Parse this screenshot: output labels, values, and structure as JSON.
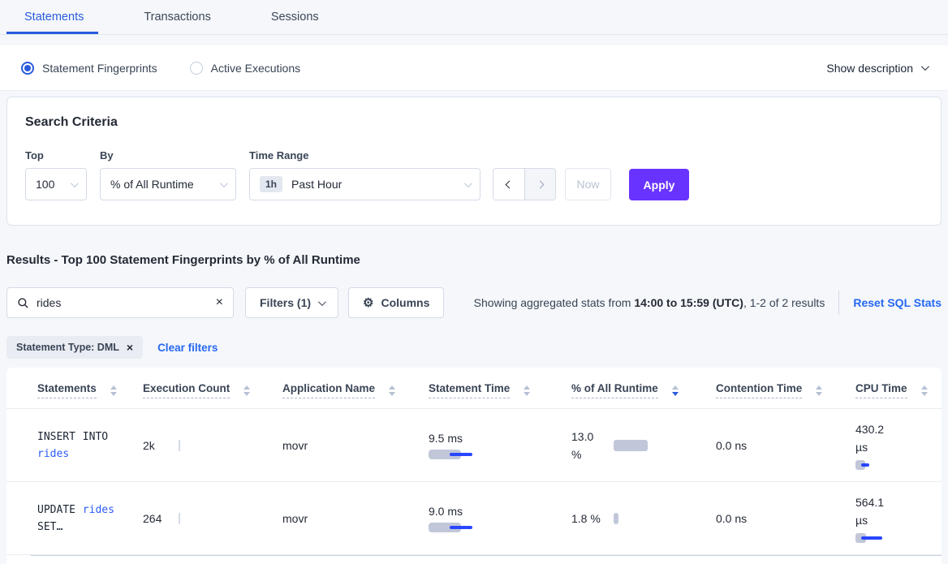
{
  "tabs": {
    "statements": "Statements",
    "transactions": "Transactions",
    "sessions": "Sessions"
  },
  "toggle": {
    "fingerprints": "Statement Fingerprints",
    "active_executions": "Active Executions",
    "show_description": "Show description"
  },
  "criteria": {
    "title": "Search Criteria",
    "top_label": "Top",
    "top_value": "100",
    "by_label": "By",
    "by_value": "% of All Runtime",
    "time_label": "Time Range",
    "time_badge": "1h",
    "time_value": "Past Hour",
    "now": "Now",
    "apply": "Apply"
  },
  "results": {
    "heading": "Results - Top 100 Statement Fingerprints by % of All Runtime",
    "search_value": "rides",
    "filters": "Filters (1)",
    "columns": "Columns",
    "stats_prefix": "Showing aggregated stats from ",
    "stats_bold": "14:00 to 15:59 (UTC)",
    "stats_suffix": ", 1-2 of 2 results",
    "reset": "Reset SQL Stats",
    "chip": "Statement Type: DML",
    "clear": "Clear filters"
  },
  "table": {
    "headers": {
      "statements": "Statements",
      "execution_count": "Execution Count",
      "application_name": "Application Name",
      "statement_time": "Statement Time",
      "runtime_pct": "% of All Runtime",
      "contention_time": "Contention Time",
      "cpu_time": "CPU Time"
    },
    "sorted_by": "% of All Runtime",
    "rows": [
      {
        "sql_prefix": "INSERT INTO",
        "sql_table": "rides",
        "sql_suffix": "",
        "exec_count": "2k",
        "app": "movr",
        "stmt_time": "9.5 ms",
        "runtime_pct": "13.0 %",
        "contention": "0.0 ns",
        "cpu": "430.2 µs",
        "bars": {
          "stmt_gray": 40,
          "stmt_blue_l": 26,
          "stmt_blue_w": 28,
          "pct_gray": 42,
          "cpu_gray": 12,
          "cpu_blue_l": 7,
          "cpu_blue_w": 10
        }
      },
      {
        "sql_prefix": "UPDATE",
        "sql_table": "rides",
        "sql_suffix": "SET…",
        "exec_count": "264",
        "app": "movr",
        "stmt_time": "9.0 ms",
        "runtime_pct": "1.8 %",
        "contention": "0.0 ns",
        "cpu": "564.1 µs",
        "bars": {
          "stmt_gray": 40,
          "stmt_blue_l": 26,
          "stmt_blue_w": 28,
          "pct_gray": 6,
          "cpu_gray": 13,
          "cpu_blue_l": 7,
          "cpu_blue_w": 26
        }
      }
    ]
  },
  "colors": {
    "accent_purple": "#6933ff",
    "link_blue": "#2668f2",
    "tab_blue": "#2a5bdc",
    "bar_gray": "#c1c7d9",
    "bar_blue": "#2946ff"
  }
}
